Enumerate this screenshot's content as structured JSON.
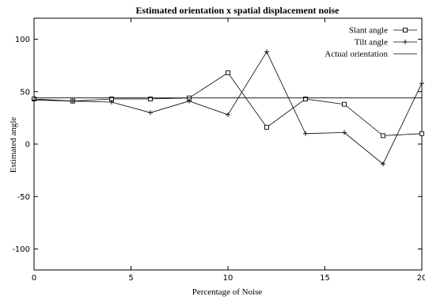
{
  "chart_data": {
    "type": "line",
    "title": "Estimated orientation x spatial displacement noise",
    "xlabel": "Percentage of Noise",
    "ylabel": "Estimated angle",
    "xlim": [
      0,
      20
    ],
    "ylim": [
      -120,
      120
    ],
    "xticks": [
      0,
      5,
      10,
      15,
      20
    ],
    "yticks": [
      -100,
      -50,
      0,
      50,
      100
    ],
    "legend_position": "top-right",
    "grid": false,
    "series": [
      {
        "name": "Slant angle",
        "marker": "square",
        "x": [
          0,
          2,
          4,
          6,
          8,
          10,
          12,
          14,
          16,
          18,
          20
        ],
        "values": [
          43,
          41,
          43,
          43,
          44,
          68,
          16,
          43,
          38,
          8,
          10
        ]
      },
      {
        "name": "Tilt angle",
        "marker": "plus",
        "x": [
          0,
          2,
          4,
          6,
          8,
          10,
          12,
          14,
          16,
          18,
          20
        ],
        "values": [
          42,
          41,
          40,
          30,
          41,
          28,
          88,
          10,
          11,
          -19,
          58
        ]
      },
      {
        "name": "Actual orientation",
        "marker": "none",
        "x": [
          0,
          20
        ],
        "values": [
          44,
          44
        ]
      }
    ]
  }
}
